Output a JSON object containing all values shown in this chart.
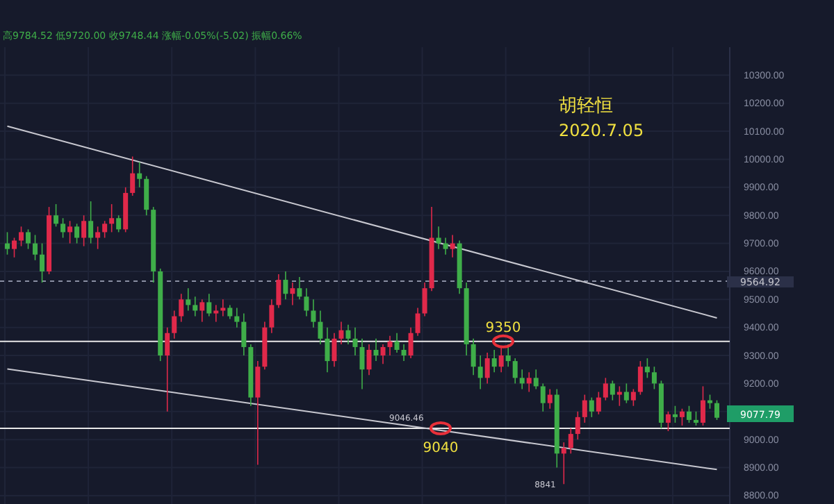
{
  "chart_data": {
    "type": "candlestick",
    "title": "胡轻恒",
    "subtitle": "2020.7.05",
    "categories": [
      null,
      null,
      null,
      null,
      null,
      null,
      null,
      null,
      null,
      null,
      null,
      null,
      null,
      null,
      null,
      null,
      null,
      null,
      null,
      null,
      null,
      null,
      null,
      null,
      null,
      null,
      null,
      null,
      null,
      null,
      null,
      null,
      null,
      null,
      null,
      null,
      null,
      null,
      null,
      null,
      null,
      null,
      null,
      null,
      null,
      null,
      null,
      null,
      null,
      null,
      null,
      null,
      null,
      null,
      null,
      null,
      null,
      null,
      null,
      null,
      null,
      null,
      null,
      null,
      null,
      null,
      null,
      null,
      null,
      null,
      null,
      null,
      null,
      null,
      null,
      null,
      null,
      null,
      null,
      null,
      null,
      null,
      null,
      null,
      null,
      null,
      null,
      null,
      null,
      null,
      null,
      null,
      null,
      null,
      null,
      null,
      null,
      null,
      null,
      null,
      null,
      null,
      null
    ],
    "ohlc": [
      [
        9700,
        9740,
        9660,
        9680
      ],
      [
        9680,
        9720,
        9650,
        9710
      ],
      [
        9710,
        9760,
        9690,
        9740
      ],
      [
        9740,
        9750,
        9680,
        9700
      ],
      [
        9700,
        9730,
        9640,
        9660
      ],
      [
        9660,
        9700,
        9560,
        9600
      ],
      [
        9600,
        9830,
        9590,
        9800
      ],
      [
        9800,
        9840,
        9760,
        9770
      ],
      [
        9770,
        9790,
        9720,
        9740
      ],
      [
        9740,
        9780,
        9700,
        9760
      ],
      [
        9760,
        9770,
        9700,
        9720
      ],
      [
        9720,
        9800,
        9690,
        9780
      ],
      [
        9780,
        9850,
        9700,
        9720
      ],
      [
        9720,
        9760,
        9680,
        9740
      ],
      [
        9740,
        9780,
        9720,
        9770
      ],
      [
        9770,
        9840,
        9740,
        9790
      ],
      [
        9790,
        9800,
        9740,
        9750
      ],
      [
        9750,
        9900,
        9740,
        9880
      ],
      [
        9880,
        10010,
        9870,
        9950
      ],
      [
        9950,
        9990,
        9900,
        9930
      ],
      [
        9930,
        9940,
        9800,
        9820
      ],
      [
        9820,
        9830,
        9560,
        9600
      ],
      [
        9600,
        9610,
        9280,
        9300
      ],
      [
        9300,
        9400,
        9100,
        9380
      ],
      [
        9380,
        9460,
        9360,
        9440
      ],
      [
        9440,
        9520,
        9420,
        9500
      ],
      [
        9500,
        9540,
        9460,
        9480
      ],
      [
        9480,
        9510,
        9440,
        9460
      ],
      [
        9460,
        9500,
        9420,
        9490
      ],
      [
        9490,
        9520,
        9440,
        9450
      ],
      [
        9450,
        9480,
        9420,
        9460
      ],
      [
        9460,
        9500,
        9440,
        9470
      ],
      [
        9470,
        9480,
        9430,
        9440
      ],
      [
        9440,
        9470,
        9400,
        9420
      ],
      [
        9420,
        9450,
        9300,
        9330
      ],
      [
        9330,
        9340,
        9120,
        9150
      ],
      [
        9150,
        9280,
        8910,
        9260
      ],
      [
        9260,
        9420,
        9250,
        9400
      ],
      [
        9400,
        9500,
        9380,
        9480
      ],
      [
        9480,
        9590,
        9470,
        9570
      ],
      [
        9570,
        9600,
        9500,
        9520
      ],
      [
        9520,
        9560,
        9480,
        9540
      ],
      [
        9540,
        9580,
        9500,
        9510
      ],
      [
        9510,
        9540,
        9440,
        9460
      ],
      [
        9460,
        9500,
        9400,
        9420
      ],
      [
        9420,
        9460,
        9340,
        9360
      ],
      [
        9360,
        9400,
        9240,
        9280
      ],
      [
        9280,
        9380,
        9260,
        9360
      ],
      [
        9360,
        9420,
        9340,
        9390
      ],
      [
        9390,
        9410,
        9340,
        9360
      ],
      [
        9360,
        9400,
        9300,
        9330
      ],
      [
        9330,
        9360,
        9180,
        9250
      ],
      [
        9250,
        9340,
        9230,
        9320
      ],
      [
        9320,
        9360,
        9280,
        9300
      ],
      [
        9300,
        9340,
        9270,
        9330
      ],
      [
        9330,
        9370,
        9300,
        9350
      ],
      [
        9350,
        9380,
        9310,
        9320
      ],
      [
        9320,
        9340,
        9280,
        9300
      ],
      [
        9300,
        9400,
        9290,
        9380
      ],
      [
        9380,
        9470,
        9370,
        9450
      ],
      [
        9450,
        9560,
        9440,
        9540
      ],
      [
        9540,
        9830,
        9530,
        9720
      ],
      [
        9720,
        9760,
        9680,
        9700
      ],
      [
        9700,
        9720,
        9660,
        9680
      ],
      [
        9680,
        9730,
        9650,
        9700
      ],
      [
        9700,
        9710,
        9520,
        9540
      ],
      [
        9540,
        9560,
        9300,
        9340
      ],
      [
        9340,
        9360,
        9230,
        9260
      ],
      [
        9260,
        9300,
        9180,
        9220
      ],
      [
        9220,
        9310,
        9200,
        9290
      ],
      [
        9290,
        9320,
        9240,
        9260
      ],
      [
        9260,
        9330,
        9240,
        9300
      ],
      [
        9300,
        9340,
        9260,
        9280
      ],
      [
        9280,
        9290,
        9200,
        9220
      ],
      [
        9220,
        9250,
        9180,
        9200
      ],
      [
        9200,
        9240,
        9170,
        9220
      ],
      [
        9220,
        9250,
        9180,
        9190
      ],
      [
        9190,
        9200,
        9100,
        9130
      ],
      [
        9130,
        9180,
        9110,
        9160
      ],
      [
        9160,
        9180,
        8900,
        8950
      ],
      [
        8950,
        8990,
        8841,
        8970
      ],
      [
        8970,
        9040,
        8950,
        9020
      ],
      [
        9020,
        9100,
        9000,
        9080
      ],
      [
        9080,
        9160,
        9060,
        9140
      ],
      [
        9140,
        9150,
        9080,
        9100
      ],
      [
        9100,
        9170,
        9090,
        9150
      ],
      [
        9150,
        9220,
        9140,
        9200
      ],
      [
        9200,
        9210,
        9140,
        9160
      ],
      [
        9160,
        9190,
        9120,
        9170
      ],
      [
        9170,
        9200,
        9130,
        9140
      ],
      [
        9140,
        9180,
        9120,
        9170
      ],
      [
        9170,
        9280,
        9160,
        9260
      ],
      [
        9260,
        9290,
        9220,
        9240
      ],
      [
        9240,
        9260,
        9180,
        9200
      ],
      [
        9200,
        9210,
        9040,
        9060
      ],
      [
        9060,
        9100,
        9030,
        9090
      ],
      [
        9090,
        9120,
        9060,
        9080
      ],
      [
        9080,
        9110,
        9050,
        9100
      ],
      [
        9100,
        9120,
        9060,
        9070
      ],
      [
        9070,
        9100,
        9050,
        9060
      ],
      [
        9060,
        9190,
        9050,
        9140
      ],
      [
        9140,
        9160,
        9110,
        9130
      ],
      [
        9130,
        9140,
        9070,
        9077.79
      ]
    ],
    "series": [
      {
        "type": "line",
        "color": "#c8c8d0",
        "values": [
          10118,
          null,
          null,
          null,
          null,
          null,
          null,
          null,
          null,
          null,
          null,
          null,
          null,
          null,
          null,
          null,
          null,
          null,
          null,
          null,
          null,
          null,
          null,
          null,
          null,
          null,
          null,
          null,
          null,
          null,
          null,
          null,
          null,
          null,
          null,
          null,
          null,
          null,
          null,
          null,
          null,
          null,
          null,
          null,
          null,
          null,
          null,
          null,
          null,
          null,
          null,
          null,
          null,
          null,
          null,
          null,
          null,
          null,
          null,
          null,
          null,
          null,
          null,
          null,
          null,
          null,
          null,
          null,
          null,
          null,
          null,
          null,
          null,
          null,
          null,
          null,
          null,
          null,
          null,
          null,
          null,
          null,
          null,
          null,
          null,
          null,
          null,
          null,
          null,
          null,
          null,
          null,
          null,
          null,
          null,
          null,
          null,
          null,
          null,
          null,
          null,
          null,
          9434
        ]
      },
      {
        "type": "line",
        "color": "#c8c8d0",
        "values": [
          9252,
          null,
          null,
          null,
          null,
          null,
          null,
          null,
          null,
          null,
          null,
          null,
          null,
          null,
          null,
          null,
          null,
          null,
          null,
          null,
          null,
          null,
          null,
          null,
          null,
          null,
          null,
          null,
          null,
          null,
          null,
          null,
          null,
          null,
          null,
          null,
          null,
          null,
          null,
          null,
          null,
          null,
          null,
          null,
          null,
          null,
          null,
          null,
          null,
          null,
          null,
          null,
          null,
          null,
          null,
          null,
          null,
          null,
          null,
          null,
          null,
          null,
          null,
          null,
          null,
          null,
          null,
          null,
          null,
          null,
          null,
          null,
          null,
          null,
          null,
          null,
          null,
          null,
          null,
          null,
          null,
          null,
          null,
          null,
          null,
          null,
          null,
          null,
          null,
          null,
          null,
          null,
          null,
          null,
          null,
          null,
          null,
          null,
          null,
          null,
          null,
          null,
          8893
        ]
      }
    ],
    "ylim": [
      8770,
      10400
    ],
    "yticks": [
      {
        "value": 8800,
        "label": "8800.00"
      },
      {
        "value": 8900,
        "label": "8900.00"
      },
      {
        "value": 9000,
        "label": "9000.00"
      },
      {
        "value": 9100,
        "label": null
      },
      {
        "value": 9200,
        "label": "9200.00"
      },
      {
        "value": 9300,
        "label": "9300.00"
      },
      {
        "value": 9400,
        "label": "9400.00"
      },
      {
        "value": 9500,
        "label": "9500.00"
      },
      {
        "value": 9600,
        "label": "9600.00"
      },
      {
        "value": 9700,
        "label": "9700.00"
      },
      {
        "value": 9800,
        "label": "9800.00"
      },
      {
        "value": 9900,
        "label": "9900.00"
      },
      {
        "value": 10000,
        "label": "10000.00"
      },
      {
        "value": 10100,
        "label": "10100.00"
      },
      {
        "value": 10200,
        "label": "10200.00"
      },
      {
        "value": 10300,
        "label": "10300.00"
      }
    ],
    "tick_labels": "y",
    "grid": true,
    "ref_lines": [
      {
        "axis": "y",
        "value": 9350,
        "label": "9350",
        "color": "#e8e8e8",
        "line_style": "solid"
      },
      {
        "axis": "y",
        "value": 9040,
        "label": "9040",
        "color": "#e8e8e8",
        "line_style": "solid"
      },
      {
        "axis": "y",
        "value": 9564.92,
        "label": "9564.92",
        "color": "#8a8fa3",
        "line_style": "dashed"
      }
    ],
    "annotations": [
      "高9784.52 低9720.00 收9748.44 涨幅-0.05%(-5.02) 振幅0.66%",
      {
        "text": "9046.46",
        "y": 9046.46
      },
      "8841",
      "9077.79"
    ]
  }
}
